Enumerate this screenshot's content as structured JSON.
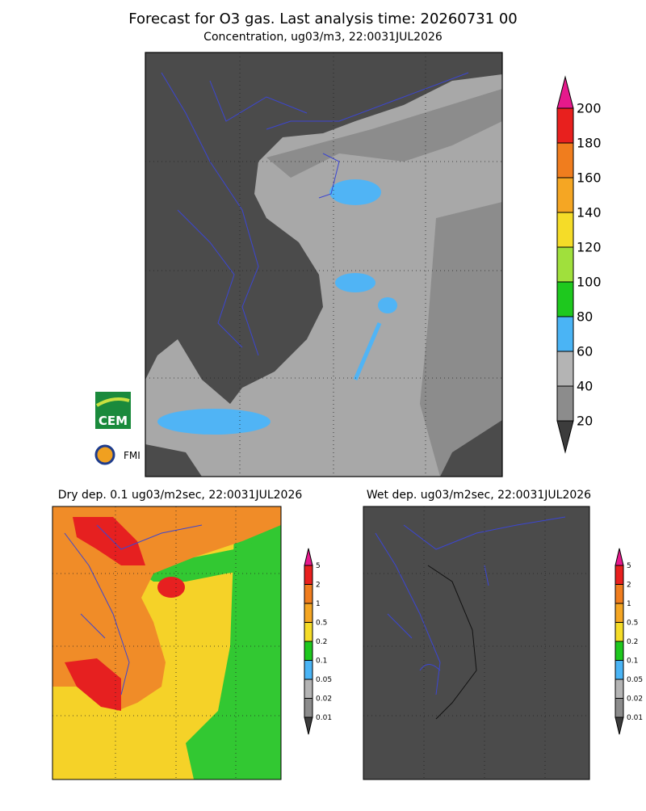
{
  "header": {
    "title": "Forecast for O3 gas. Last analysis time: 20260731 00",
    "subtitle": "Concentration, ug03/m3, 22:0031JUL2026"
  },
  "panels": [
    {
      "title": "Dry dep. 0.1 ug03/m2sec, 22:0031JUL2026",
      "colorbar": [
        "5",
        "2",
        "1",
        "0.5",
        "0.2",
        "0.1",
        "0.05",
        "0.02",
        "0.01"
      ]
    },
    {
      "title": "Wet dep. ug03/m2sec, 22:0031JUL2026",
      "colorbar": [
        "5",
        "2",
        "1",
        "0.5",
        "0.2",
        "0.1",
        "0.05",
        "0.02",
        "0.01"
      ]
    }
  ],
  "main_colorbar": [
    "200",
    "180",
    "160",
    "140",
    "120",
    "100",
    "80",
    "60",
    "40",
    "20"
  ],
  "logos": {
    "cem": "CEM",
    "fmi": "FMI"
  }
}
